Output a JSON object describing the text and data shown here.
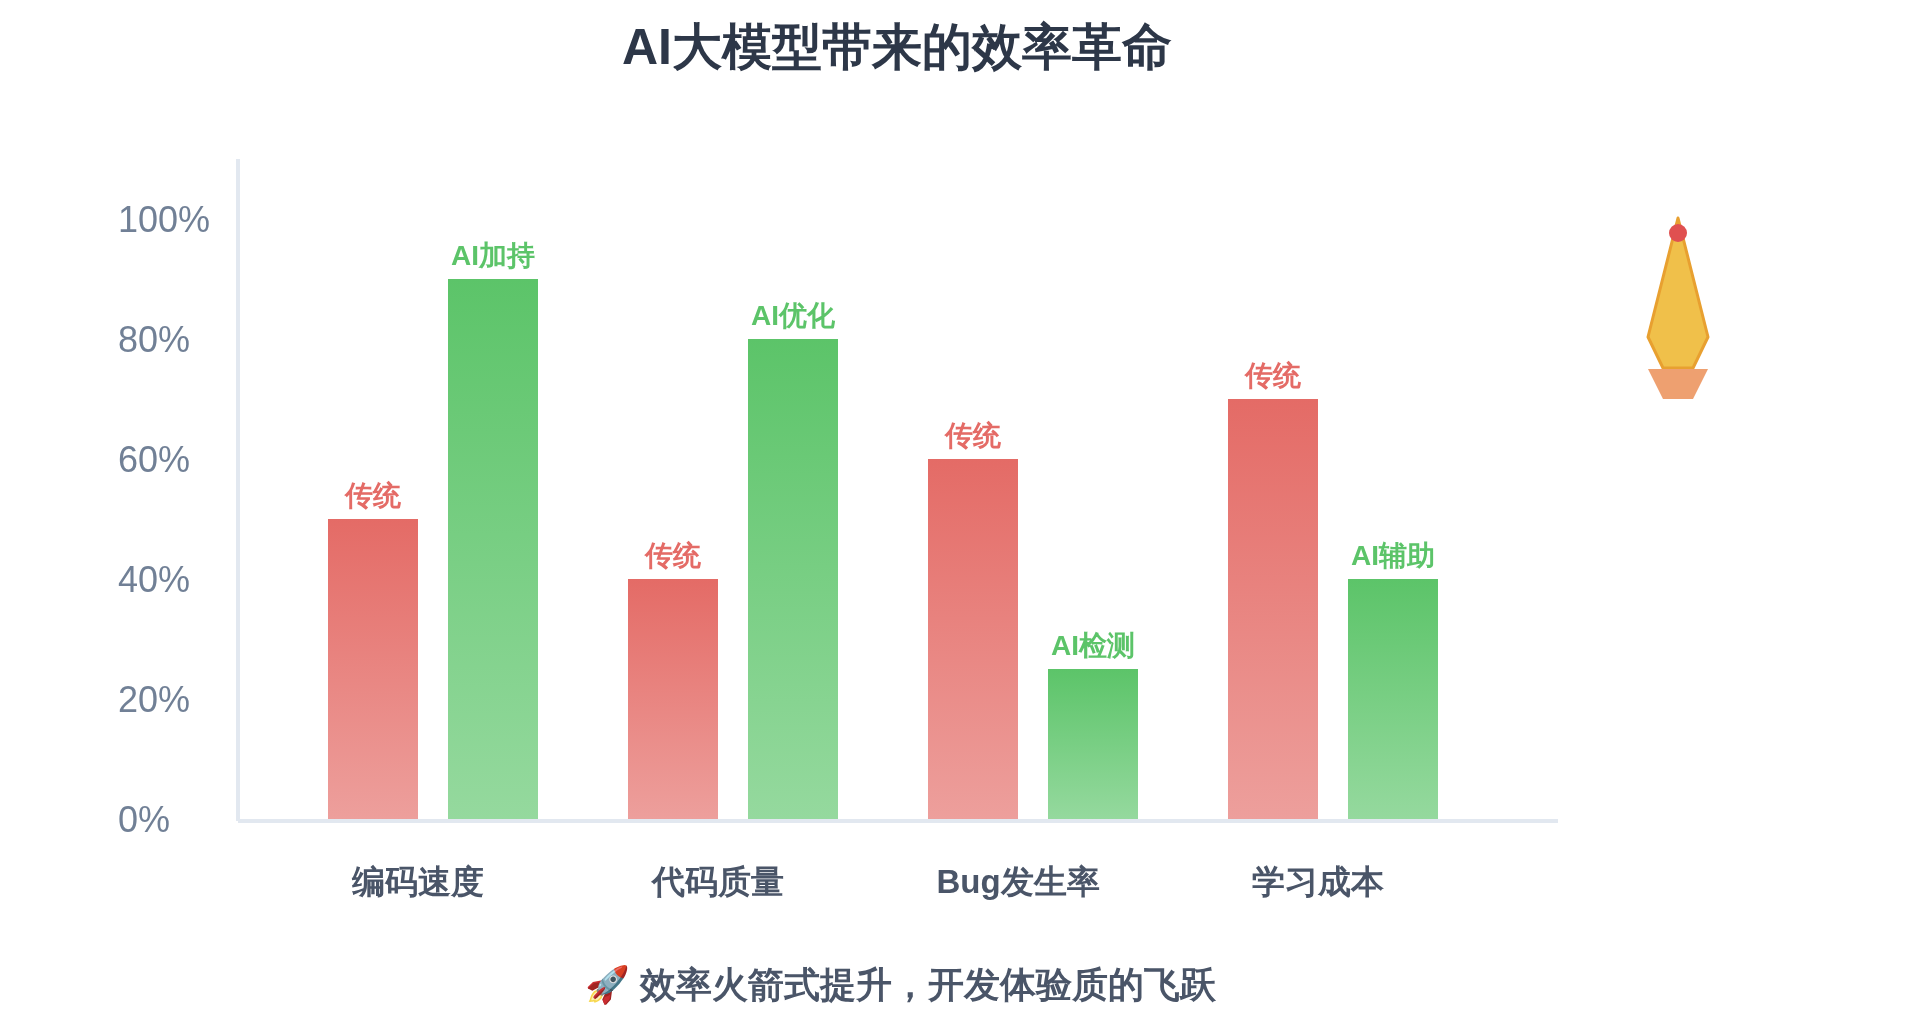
{
  "chart_data": {
    "type": "bar",
    "title": "AI大模型带来的效率革命",
    "categories": [
      "编码速度",
      "代码质量",
      "Bug发生率",
      "学习成本"
    ],
    "series": [
      {
        "color": "#e46b66",
        "values": [
          50,
          40,
          60,
          70
        ],
        "value_labels": [
          "传统",
          "传统",
          "传统",
          "传统"
        ]
      },
      {
        "color": "#5cc469",
        "values": [
          90,
          80,
          25,
          40
        ],
        "value_labels": [
          "AI加持",
          "AI优化",
          "AI检测",
          "AI辅助"
        ]
      }
    ],
    "ylim": [
      0,
      110
    ],
    "yticks": [
      {
        "value": 0,
        "label": "0%"
      },
      {
        "value": 20,
        "label": "20%"
      },
      {
        "value": 40,
        "label": "40%"
      },
      {
        "value": 60,
        "label": "60%"
      },
      {
        "value": 80,
        "label": "80%"
      },
      {
        "value": 100,
        "label": "100%"
      }
    ],
    "annotations": [
      "🚀 效率火箭式提升，开发体验质的飞跃"
    ]
  }
}
